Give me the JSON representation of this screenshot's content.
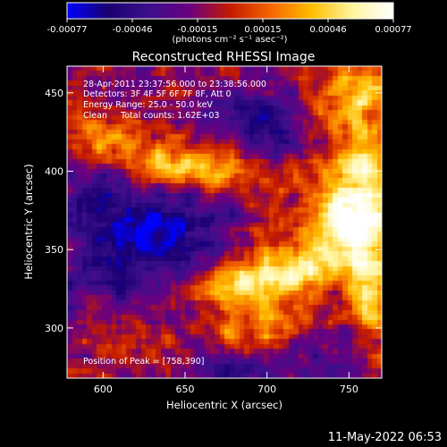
{
  "chart_data": {
    "type": "heatmap",
    "title": "Reconstructed RHESSI Image",
    "xlabel": "Heliocentric X (arcsec)",
    "ylabel": "Heliocentric Y (arcsec)",
    "xlim": [
      578,
      770
    ],
    "ylim": [
      268,
      467
    ],
    "x_ticks": [
      600,
      650,
      700,
      750
    ],
    "y_ticks": [
      300,
      350,
      400,
      450
    ],
    "grid": false,
    "colorbar": {
      "ticks": [
        "-0.00077",
        "-0.00046",
        "-0.00015",
        "0.00015",
        "0.00046",
        "0.00077"
      ],
      "range": [
        -0.00077,
        0.00077
      ],
      "units_label": "(photons cm⁻² s⁻¹ asec⁻²)",
      "colors": [
        "#0000ff",
        "#1a0070",
        "#3c0f8c",
        "#6a0080",
        "#c41a00",
        "#f56600",
        "#ffbd00",
        "#fff5a0",
        "#ffffff"
      ]
    },
    "annotations": [
      "28-Apr-2011 23:37:56.000 to 23:38:56.000",
      "Detectors: 3F 4F 5F 6F 7F 8F, Att 0",
      "Energy Range: 25.0 - 50.0 keV",
      "Clean     Total counts: 1.62E+03"
    ],
    "peak_label": "Position of Peak = [758,390]",
    "peak_position": [
      758,
      390
    ],
    "hot_regions": [
      {
        "x": 758,
        "y": 390,
        "sx": 14,
        "sy": 26,
        "amp": 0.00077
      },
      {
        "x": 743,
        "y": 365,
        "sx": 20,
        "sy": 14,
        "amp": 0.00052
      },
      {
        "x": 718,
        "y": 338,
        "sx": 26,
        "sy": 11,
        "amp": 0.00058
      },
      {
        "x": 682,
        "y": 327,
        "sx": 22,
        "sy": 9,
        "amp": 0.00048
      },
      {
        "x": 763,
        "y": 322,
        "sx": 10,
        "sy": 22,
        "amp": 0.0006
      },
      {
        "x": 665,
        "y": 400,
        "sx": 26,
        "sy": 11,
        "amp": 0.00052
      },
      {
        "x": 640,
        "y": 404,
        "sx": 14,
        "sy": 9,
        "amp": 0.0004
      },
      {
        "x": 605,
        "y": 420,
        "sx": 16,
        "sy": 10,
        "amp": 0.00036
      },
      {
        "x": 757,
        "y": 448,
        "sx": 20,
        "sy": 14,
        "amp": 0.00052
      },
      {
        "x": 727,
        "y": 428,
        "sx": 12,
        "sy": 10,
        "amp": 0.0003
      },
      {
        "x": 697,
        "y": 302,
        "sx": 22,
        "sy": 12,
        "amp": 0.00036
      },
      {
        "x": 618,
        "y": 296,
        "sx": 16,
        "sy": 12,
        "amp": 0.00022
      }
    ],
    "cold_regions": [
      {
        "x": 612,
        "y": 352,
        "sx": 24,
        "sy": 26,
        "amp": -0.00048
      },
      {
        "x": 650,
        "y": 368,
        "sx": 20,
        "sy": 24,
        "amp": -0.00036
      },
      {
        "x": 706,
        "y": 430,
        "sx": 24,
        "sy": 16,
        "amp": -0.0004
      },
      {
        "x": 683,
        "y": 274,
        "sx": 16,
        "sy": 8,
        "amp": -0.0004
      },
      {
        "x": 595,
        "y": 385,
        "sx": 10,
        "sy": 10,
        "amp": -0.0003
      },
      {
        "x": 735,
        "y": 285,
        "sx": 16,
        "sy": 10,
        "amp": -0.00024
      }
    ]
  },
  "footer_timestamp": "11-May-2022 06:53"
}
